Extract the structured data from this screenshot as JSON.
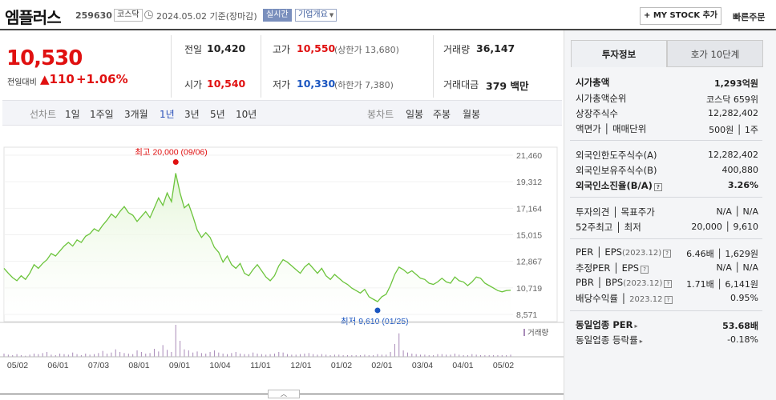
{
  "header": {
    "name": "엠플러스",
    "code": "259630",
    "market": "코스닥",
    "base_date": "2024.05.02  기준(장마감)",
    "realtime": "실시간",
    "company_info": "기업개요",
    "mystock": "+ MY STOCK 추가",
    "quick_order": "빠른주문"
  },
  "price": {
    "current": "10,530",
    "change_label": "전일대비",
    "change": "▲110",
    "change_pct": "+1.06%"
  },
  "quote": {
    "prev_close_label": "전일",
    "prev_close": "10,420",
    "high_label": "고가",
    "high": "10,550",
    "upper_limit": "(상한가 13,680)",
    "volume_label": "거래량",
    "volume": "36,147",
    "open_label": "시가",
    "open": "10,540",
    "low_label": "저가",
    "low": "10,330",
    "lower_limit": "(하한가 7,380)",
    "amount_label": "거래대금",
    "amount": "379 백만"
  },
  "period_bar": {
    "line_label": "선차트",
    "periods": [
      "1일",
      "1주일",
      "3개월",
      "1년",
      "3년",
      "5년",
      "10년"
    ],
    "selected": "1년",
    "candle_label": "봉차트",
    "candles": [
      "일봉",
      "주봉",
      "월봉"
    ]
  },
  "chart_data": {
    "type": "area",
    "yticks": [
      "21,460",
      "19,312",
      "17,164",
      "15,015",
      "12,867",
      "10,719",
      "8,571"
    ],
    "ylim": [
      8571,
      21460
    ],
    "xticks": [
      "05/02",
      "06/01",
      "07/03",
      "08/01",
      "09/01",
      "10/04",
      "11/01",
      "12/01",
      "01/02",
      "02/01",
      "03/04",
      "04/01",
      "05/02"
    ],
    "max_label": "최고 20,000 (09/06)",
    "min_label": "최저 9,610 (01/25)",
    "volume_label": "거래량",
    "line_color": "#6cc43c",
    "fill_color": "#e3f5d6",
    "series": [
      {
        "values": [
          12300,
          11900,
          11550,
          11300,
          11700,
          11400,
          11900,
          12600,
          12300,
          12700,
          13000,
          13500,
          13300,
          13700,
          14100,
          14400,
          14100,
          14600,
          14400,
          14900,
          15100,
          15500,
          15300,
          15800,
          16200,
          16700,
          16400,
          16900,
          17300,
          16800,
          16600,
          16100,
          16500,
          16900,
          16400,
          17200,
          18000,
          17400,
          18400,
          17700,
          20000,
          18400,
          17200,
          17500,
          16500,
          15400,
          14800,
          15200,
          14800,
          14000,
          13600,
          12800,
          13300,
          12600,
          12300,
          12700,
          11900,
          11700,
          12200,
          12600,
          12100,
          11600,
          11300,
          11700,
          12500,
          13000,
          12800,
          12500,
          12200,
          11900,
          12400,
          12700,
          12300,
          11900,
          12300,
          11700,
          11400,
          11800,
          11500,
          11200,
          11000,
          10700,
          10500,
          10300,
          10600,
          10000,
          9800,
          9610,
          10000,
          10200,
          10900,
          11800,
          12400,
          12200,
          11900,
          12100,
          11800,
          11500,
          11400,
          11100,
          11000,
          11200,
          11500,
          11200,
          11100,
          11600,
          11300,
          11200,
          10900,
          11200,
          11600,
          11500,
          11100,
          10900,
          10700,
          10500,
          10400,
          10500,
          10530
        ]
      },
      {
        "name": "거래량",
        "values": [
          6,
          4,
          3,
          5,
          3,
          2,
          4,
          6,
          5,
          7,
          9,
          4,
          3,
          6,
          5,
          4,
          8,
          5,
          3,
          6,
          4,
          5,
          7,
          11,
          6,
          8,
          14,
          9,
          7,
          6,
          5,
          12,
          9,
          6,
          7,
          15,
          10,
          22,
          13,
          9,
          60,
          30,
          14,
          12,
          8,
          10,
          7,
          6,
          9,
          12,
          8,
          6,
          5,
          7,
          9,
          6,
          5,
          5,
          8,
          6,
          5,
          4,
          5,
          6,
          9,
          8,
          5,
          4,
          4,
          5,
          6,
          7,
          5,
          4,
          5,
          4,
          3,
          4,
          4,
          3,
          3,
          3,
          3,
          3,
          4,
          3,
          3,
          5,
          4,
          4,
          9,
          24,
          44,
          12,
          8,
          6,
          5,
          4,
          4,
          3,
          3,
          5,
          5,
          4,
          4,
          6,
          4,
          3,
          3,
          5,
          4,
          3,
          3,
          3,
          3,
          3,
          3,
          3,
          4
        ]
      }
    ]
  },
  "panel": {
    "tab_info": "투자정보",
    "tab_quote": "호가 10단계",
    "g1": [
      {
        "label": "시가총액",
        "value": "1,293억원"
      },
      {
        "label": "시가총액순위",
        "value": "코스닥 659위"
      },
      {
        "label": "상장주식수",
        "value": "12,282,402"
      },
      {
        "label": "액면가 │ 매매단위",
        "value": "500원 │ 1주"
      }
    ],
    "g2": [
      {
        "label": "외국인한도주식수(A)",
        "value": "12,282,402"
      },
      {
        "label": "외국인보유주식수(B)",
        "value": "400,880"
      },
      {
        "label": "외국인소진율(B/A)",
        "value": "3.26%"
      }
    ],
    "g3": [
      {
        "label": "투자의견 │ 목표주가",
        "value": "N/A │ N/A"
      },
      {
        "label": "52주최고 │ 최저",
        "value": "20,000 │ 9,610"
      }
    ],
    "g4": [
      {
        "label": "PER │ EPS",
        "year": "(2023.12)",
        "value": "6.46배 │ 1,629원"
      },
      {
        "label": "추정PER │ EPS",
        "value": "N/A │ N/A"
      },
      {
        "label": "PBR │ BPS",
        "year": "(2023.12)",
        "value": "1.71배 │ 6,141원"
      },
      {
        "label": "배당수익률 │",
        "year": "2023.12",
        "value": "0.95%"
      }
    ],
    "g5": [
      {
        "label": "동일업종 PER",
        "value": "53.68배"
      },
      {
        "label": "동일업종 등락률",
        "value": "-0.18%"
      }
    ],
    "tip_icon": "?",
    "arrow_icon": "▸"
  },
  "collapse_icon": "︿"
}
